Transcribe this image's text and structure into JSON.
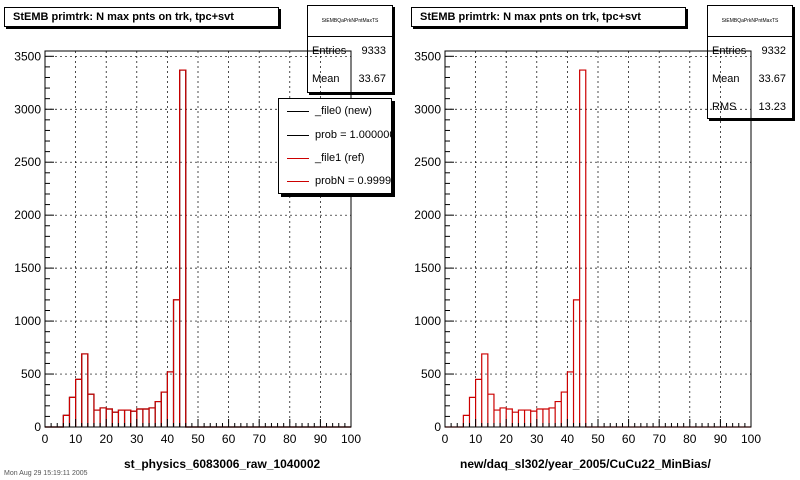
{
  "colors": {
    "new": "#000000",
    "ref": "#cc0000",
    "grid": "#000000"
  },
  "footer_text": "Mon Aug 29 15:19:11 2005",
  "panels": [
    {
      "title": "StEMB primtrk: N max pnts on trk, tpc+svt",
      "stats": {
        "name": "StEMBQaPrkNPntMaxTS",
        "rows": [
          {
            "label": "Entries",
            "value": "9333"
          },
          {
            "label": "Mean",
            "value": "33.67"
          }
        ]
      },
      "legend": [
        {
          "label": "_file0 (new)",
          "color": "#000000"
        },
        {
          "label": "prob = 1.000000",
          "color": "#000000"
        },
        {
          "label": "_file1 (ref)",
          "color": "#cc0000"
        },
        {
          "label": "probN = 0.999986",
          "color": "#cc0000"
        }
      ],
      "xlabel": "st_physics_6083006_raw_1040002"
    },
    {
      "title": "StEMB primtrk: N max pnts on trk, tpc+svt",
      "stats": {
        "name": "StEMBQaPrkNPntMaxTS",
        "rows": [
          {
            "label": "Entries",
            "value": "9332"
          },
          {
            "label": "Mean",
            "value": "33.67"
          },
          {
            "label": "RMS",
            "value": "13.23"
          }
        ]
      },
      "legend": [],
      "xlabel": "new/daq_sl302/year_2005/CuCu22_MinBias/"
    }
  ],
  "chart_data": [
    {
      "type": "bar",
      "title": "StEMB primtrk: N max pnts on trk, tpc+svt",
      "xlabel": "st_physics_6083006_raw_1040002",
      "ylabel": "",
      "xlim": [
        0,
        100
      ],
      "ylim": [
        0,
        3550
      ],
      "xticks": [
        0,
        10,
        20,
        30,
        40,
        50,
        60,
        70,
        80,
        90,
        100
      ],
      "yticks": [
        0,
        500,
        1000,
        1500,
        2000,
        2500,
        3000,
        3500
      ],
      "bin_width": 2,
      "grid": true,
      "legend_position": "top-right",
      "series": [
        {
          "name": "_file0 (new)",
          "color": "#000000",
          "bin_edges_start": [
            6,
            8,
            10,
            12,
            14,
            16,
            18,
            20,
            22,
            24,
            26,
            28,
            30,
            32,
            34,
            36,
            38,
            40,
            42,
            44
          ],
          "values": [
            110,
            280,
            450,
            690,
            310,
            160,
            180,
            170,
            140,
            160,
            160,
            150,
            170,
            170,
            180,
            240,
            330,
            520,
            1200,
            3370
          ]
        },
        {
          "name": "_file1 (ref)",
          "color": "#cc0000",
          "bin_edges_start": [
            6,
            8,
            10,
            12,
            14,
            16,
            18,
            20,
            22,
            24,
            26,
            28,
            30,
            32,
            34,
            36,
            38,
            40,
            42,
            44
          ],
          "values": [
            110,
            280,
            450,
            690,
            310,
            160,
            180,
            170,
            140,
            160,
            160,
            150,
            170,
            170,
            180,
            240,
            330,
            520,
            1200,
            3370
          ]
        }
      ]
    },
    {
      "type": "bar",
      "title": "StEMB primtrk: N max pnts on trk, tpc+svt",
      "xlabel": "new/daq_sl302/year_2005/CuCu22_MinBias/",
      "ylabel": "",
      "xlim": [
        0,
        100
      ],
      "ylim": [
        0,
        3550
      ],
      "xticks": [
        0,
        10,
        20,
        30,
        40,
        50,
        60,
        70,
        80,
        90,
        100
      ],
      "yticks": [
        0,
        500,
        1000,
        1500,
        2000,
        2500,
        3000,
        3500
      ],
      "bin_width": 2,
      "grid": true,
      "series": [
        {
          "name": "",
          "color": "#cc0000",
          "bin_edges_start": [
            6,
            8,
            10,
            12,
            14,
            16,
            18,
            20,
            22,
            24,
            26,
            28,
            30,
            32,
            34,
            36,
            38,
            40,
            42,
            44
          ],
          "values": [
            110,
            280,
            450,
            690,
            310,
            160,
            180,
            170,
            140,
            160,
            160,
            150,
            170,
            170,
            180,
            240,
            330,
            520,
            1200,
            3370
          ]
        }
      ]
    }
  ]
}
